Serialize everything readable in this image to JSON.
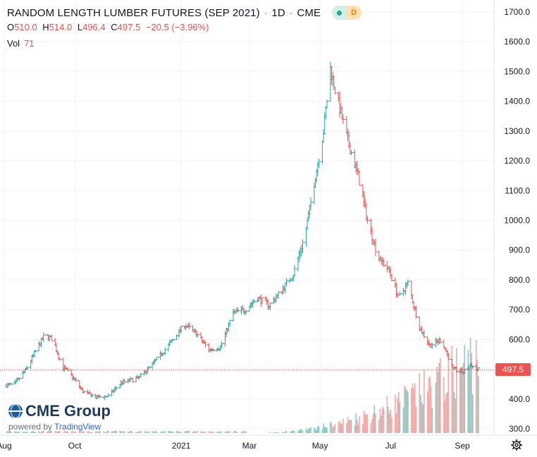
{
  "header": {
    "title": "RANDOM LENGTH LUMBER FUTURES (SEP 2021)",
    "interval": "1D",
    "exchange": "CME",
    "separator": "·",
    "badge_letter": "D"
  },
  "ohlc": {
    "open_label": "O",
    "open": "510.0",
    "high_label": "H",
    "high": "514.0",
    "low_label": "L",
    "low": "496.4",
    "close_label": "C",
    "close": "497.5",
    "change": "−20.5 (−3.96%)"
  },
  "volume": {
    "label": "Vol",
    "value": "71"
  },
  "branding": {
    "company": "CME Group",
    "powered_prefix": "powered by",
    "powered_brand": "TradingView"
  },
  "last_price_tag": "497.5",
  "colors": {
    "up": "#26a69a",
    "down": "#ef5350",
    "grid": "#f0f3fa",
    "text": "#131722",
    "axis_text": "#131722"
  },
  "icons": {
    "settings": "gear-icon",
    "visibility": "eye-icon"
  },
  "chart_data": {
    "type": "ohlc",
    "title": "RANDOM LENGTH LUMBER FUTURES (SEP 2021)",
    "ylim": [
      290,
      1720
    ],
    "yticks": [
      300,
      400,
      500,
      600,
      700,
      800,
      900,
      1000,
      1100,
      1200,
      1300,
      1400,
      1500,
      1600,
      1700
    ],
    "ytick_labels": [
      "300.0",
      "400.0",
      "500.0",
      "600.0",
      "700.0",
      "800.0",
      "900.0",
      "1000.0",
      "1100.0",
      "1200.0",
      "1300.0",
      "1400.0",
      "1500.0",
      "1600.0",
      "1700.0"
    ],
    "xlabels": [
      "Aug",
      "Oct",
      "2021",
      "Mar",
      "May",
      "Jul",
      "Sep"
    ],
    "x_range": [
      "2020-08-01",
      "2021-09-15"
    ],
    "last_price": 497.5,
    "grid": true,
    "series": [
      {
        "name": "Price",
        "anchors": [
          [
            "2020-08-01",
            445
          ],
          [
            "2020-08-10",
            450
          ],
          [
            "2020-08-20",
            500
          ],
          [
            "2020-08-28",
            560
          ],
          [
            "2020-09-05",
            615
          ],
          [
            "2020-09-12",
            600
          ],
          [
            "2020-09-20",
            510
          ],
          [
            "2020-09-28",
            480
          ],
          [
            "2020-10-08",
            425
          ],
          [
            "2020-10-20",
            405
          ],
          [
            "2020-10-30",
            410
          ],
          [
            "2020-11-10",
            455
          ],
          [
            "2020-11-25",
            470
          ],
          [
            "2020-12-08",
            520
          ],
          [
            "2020-12-22",
            585
          ],
          [
            "2021-01-04",
            650
          ],
          [
            "2021-01-14",
            620
          ],
          [
            "2021-01-25",
            565
          ],
          [
            "2021-02-04",
            575
          ],
          [
            "2021-02-15",
            690
          ],
          [
            "2021-02-25",
            700
          ],
          [
            "2021-03-08",
            740
          ],
          [
            "2021-03-18",
            715
          ],
          [
            "2021-03-28",
            760
          ],
          [
            "2021-04-08",
            820
          ],
          [
            "2021-04-18",
            950
          ],
          [
            "2021-04-28",
            1170
          ],
          [
            "2021-05-04",
            1300
          ],
          [
            "2021-05-10",
            1510
          ],
          [
            "2021-05-14",
            1440
          ],
          [
            "2021-05-24",
            1280
          ],
          [
            "2021-06-03",
            1150
          ],
          [
            "2021-06-11",
            1000
          ],
          [
            "2021-06-20",
            880
          ],
          [
            "2021-06-30",
            830
          ],
          [
            "2021-07-08",
            740
          ],
          [
            "2021-07-16",
            790
          ],
          [
            "2021-07-26",
            640
          ],
          [
            "2021-08-04",
            580
          ],
          [
            "2021-08-14",
            600
          ],
          [
            "2021-08-24",
            500
          ],
          [
            "2021-09-02",
            490
          ],
          [
            "2021-09-08",
            515
          ],
          [
            "2021-09-14",
            497.5
          ]
        ]
      }
    ],
    "volume_max": 310
  }
}
